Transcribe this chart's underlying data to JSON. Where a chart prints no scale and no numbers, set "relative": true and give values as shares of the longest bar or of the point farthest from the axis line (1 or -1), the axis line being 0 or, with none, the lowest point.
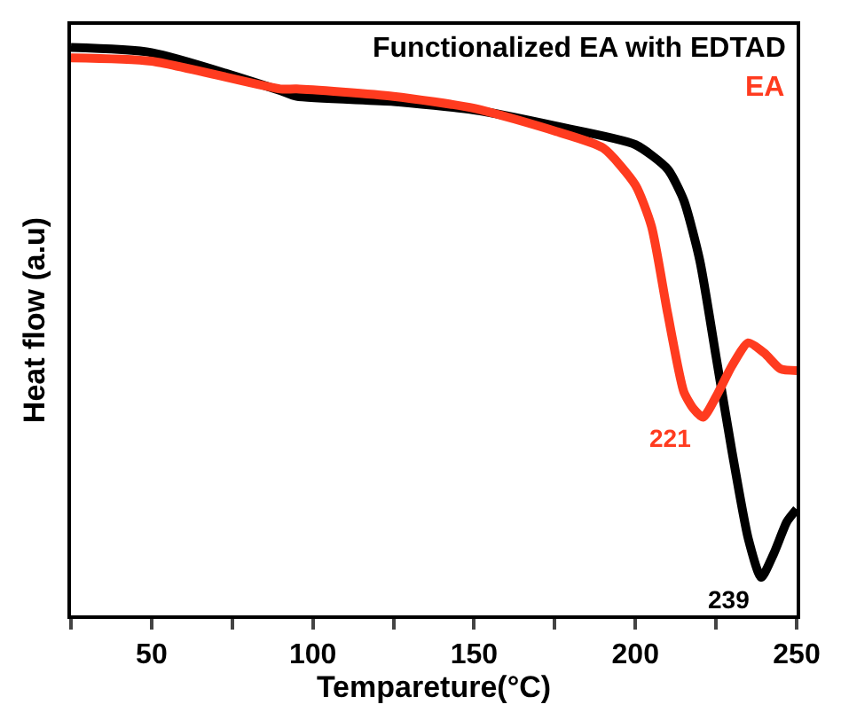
{
  "chart_data": {
    "type": "line",
    "relative": true,
    "xlabel": "Tempareture(°C)",
    "ylabel": "Heat flow (a.u)",
    "xlim": [
      25,
      250
    ],
    "xticks": [
      {
        "value": 25,
        "label": null
      },
      50,
      {
        "value": 75,
        "label": null
      },
      100,
      {
        "value": 125,
        "label": null
      },
      150,
      {
        "value": 175,
        "label": null
      },
      200,
      {
        "value": 225,
        "label": null
      },
      250
    ],
    "legend": "top right",
    "series": [
      {
        "name": "Functionalized EA with EDTAD",
        "color": "#000000",
        "x": [
          25,
          50,
          90,
          95,
          125,
          150,
          175,
          200,
          210,
          215,
          220,
          225,
          230,
          235,
          239,
          243,
          247,
          250
        ],
        "values": [
          1.0,
          0.991,
          0.924,
          0.914,
          0.905,
          0.89,
          0.862,
          0.829,
          0.786,
          0.731,
          0.624,
          0.456,
          0.287,
          0.135,
          0.067,
          0.11,
          0.165,
          0.187
        ]
      },
      {
        "name": "EA",
        "color": "#ff3b1f",
        "x": [
          25,
          50,
          90,
          95,
          125,
          150,
          175,
          190,
          200,
          205,
          210,
          215,
          218,
          221,
          225,
          230,
          235,
          240,
          245,
          250
        ],
        "values": [
          0.982,
          0.976,
          0.927,
          0.927,
          0.914,
          0.893,
          0.853,
          0.823,
          0.758,
          0.685,
          0.532,
          0.394,
          0.364,
          0.349,
          0.385,
          0.44,
          0.48,
          0.462,
          0.434,
          0.431
        ]
      }
    ],
    "annotations": [
      {
        "text": "221",
        "x": 221,
        "y": 0.349
      },
      {
        "text": "239",
        "x": 239,
        "y": 0.067
      }
    ]
  }
}
